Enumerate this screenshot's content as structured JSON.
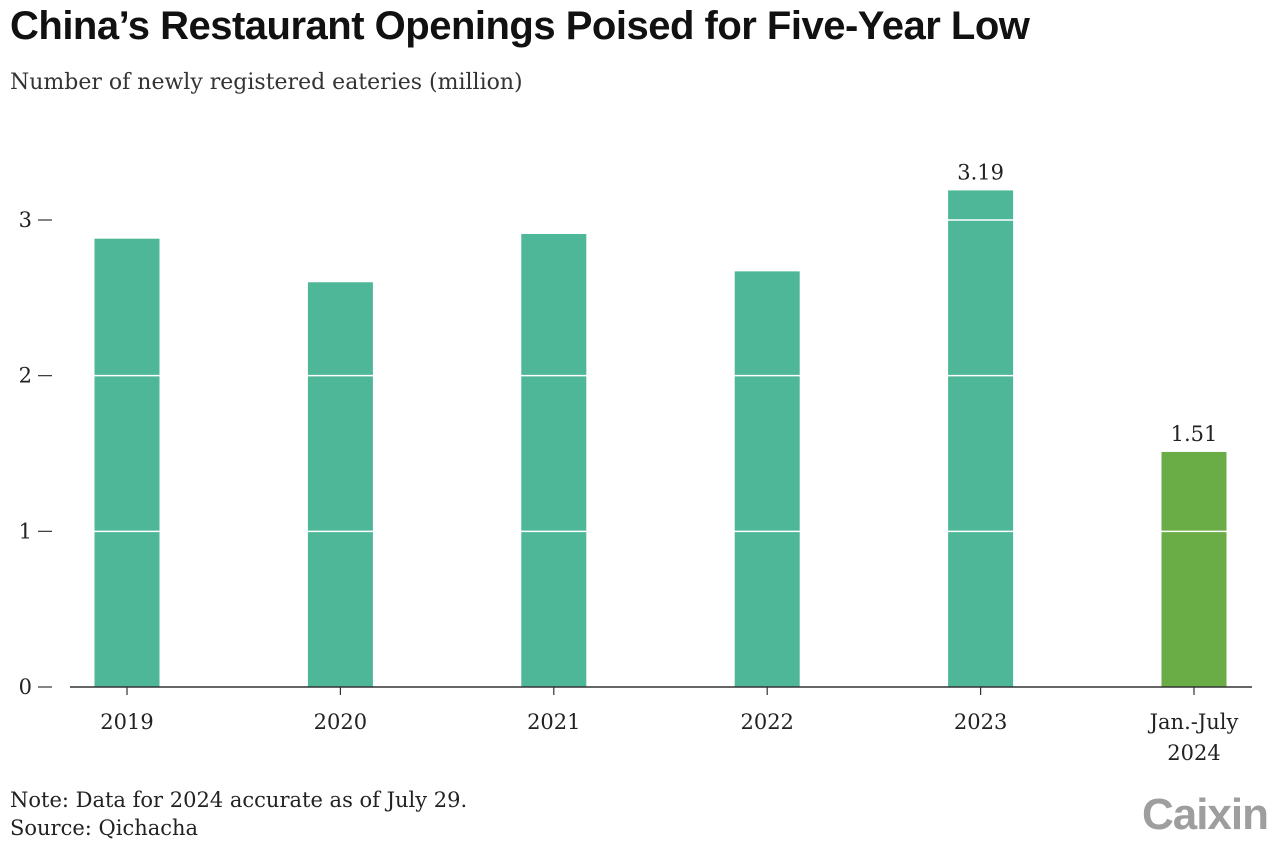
{
  "header": {
    "title": "China’s Restaurant Openings Poised for Five-Year Low",
    "subtitle": "Number of newly registered eateries (million)"
  },
  "footer": {
    "note": "Note: Data for 2024 accurate as of July 29.",
    "source": "Source: Qichacha",
    "logo": "Caixin"
  },
  "colors": {
    "bar": "#4db798",
    "highlight_bar": "#6aad47",
    "logo": "#9e9e9e"
  },
  "chart_data": {
    "type": "bar",
    "title": "China’s Restaurant Openings Poised for Five-Year Low",
    "subtitle": "Number of newly registered eateries (million)",
    "categories": [
      "2019",
      "2020",
      "2021",
      "2022",
      "2023",
      "Jan.-July 2024"
    ],
    "category_label_lines": [
      [
        "2019"
      ],
      [
        "2020"
      ],
      [
        "2021"
      ],
      [
        "2022"
      ],
      [
        "2023"
      ],
      [
        "Jan.-July",
        "2024"
      ]
    ],
    "values": [
      2.88,
      2.6,
      2.91,
      2.67,
      3.19,
      1.51
    ],
    "data_labels": [
      "",
      "",
      "",
      "",
      "3.19",
      "1.51"
    ],
    "highlight_index": 5,
    "ylim": [
      0,
      3.3
    ],
    "yticks": [
      0,
      1,
      2,
      3
    ],
    "grid": "white lines across bars",
    "legend": "none"
  }
}
